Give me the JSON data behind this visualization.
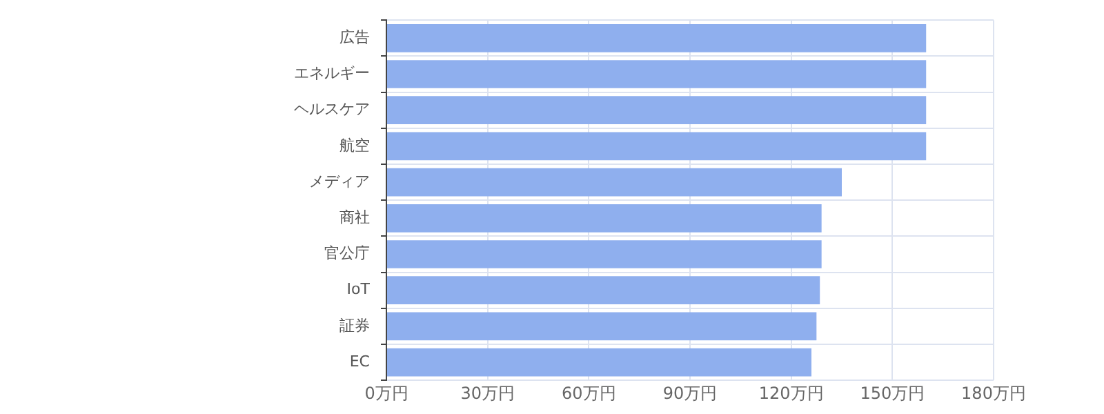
{
  "chart_data": {
    "type": "bar",
    "orientation": "horizontal",
    "categories": [
      "広告",
      "エネルギー",
      "ヘルスケア",
      "航空",
      "メディア",
      "商社",
      "官公庁",
      "IoT",
      "証券",
      "EC"
    ],
    "values": [
      160,
      160,
      160,
      160,
      135,
      129,
      129,
      128.5,
      127.5,
      126
    ],
    "color": "#8fafee",
    "xlim": [
      0,
      180
    ],
    "xticks": [
      {
        "value": 0,
        "label": "0万円"
      },
      {
        "value": 30,
        "label": "30万円"
      },
      {
        "value": 60,
        "label": "60万円"
      },
      {
        "value": 90,
        "label": "90万円"
      },
      {
        "value": 120,
        "label": "120万円"
      },
      {
        "value": 150,
        "label": "150万円"
      },
      {
        "value": 180,
        "label": "180万円"
      }
    ],
    "grid": true,
    "legend": false
  }
}
